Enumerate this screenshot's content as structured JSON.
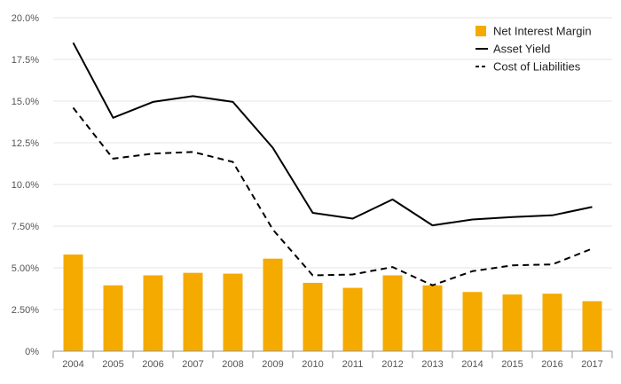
{
  "chart_data": {
    "type": "bar+line",
    "categories": [
      "2004",
      "2005",
      "2006",
      "2007",
      "2008",
      "2009",
      "2010",
      "2011",
      "2012",
      "2013",
      "2014",
      "2015",
      "2016",
      "2017"
    ],
    "series": [
      {
        "name": "Net Interest Margin",
        "kind": "bar",
        "color": "#F5AA00",
        "values": [
          5.8,
          3.95,
          4.55,
          4.7,
          4.65,
          5.55,
          4.1,
          3.8,
          4.55,
          3.95,
          3.55,
          3.4,
          3.45,
          3.0
        ]
      },
      {
        "name": "Asset Yield",
        "kind": "line",
        "dash": "solid",
        "color": "#000000",
        "values": [
          18.5,
          14.0,
          14.95,
          15.3,
          14.95,
          12.2,
          8.3,
          7.95,
          9.1,
          7.55,
          7.9,
          8.05,
          8.15,
          8.65
        ]
      },
      {
        "name": "Cost of Liabilities",
        "kind": "line",
        "dash": "dashed",
        "color": "#000000",
        "values": [
          14.6,
          11.55,
          11.85,
          11.95,
          11.35,
          7.3,
          4.55,
          4.6,
          5.05,
          3.95,
          4.8,
          5.15,
          5.2,
          6.15
        ]
      }
    ],
    "yTicks": [
      {
        "value": 0,
        "label": "0%"
      },
      {
        "value": 2.5,
        "label": "2.50%"
      },
      {
        "value": 5.0,
        "label": "5.00%"
      },
      {
        "value": 7.5,
        "label": "7.50%"
      },
      {
        "value": 10.0,
        "label": "10.0%"
      },
      {
        "value": 12.5,
        "label": "12.5%"
      },
      {
        "value": 15.0,
        "label": "15.0%"
      },
      {
        "value": 17.5,
        "label": "17.5%"
      },
      {
        "value": 20.0,
        "label": "20.0%"
      }
    ],
    "ylim": [
      0,
      20
    ],
    "title": "",
    "xlabel": "",
    "ylabel": "",
    "grid": true,
    "legend_position": "top-right"
  }
}
